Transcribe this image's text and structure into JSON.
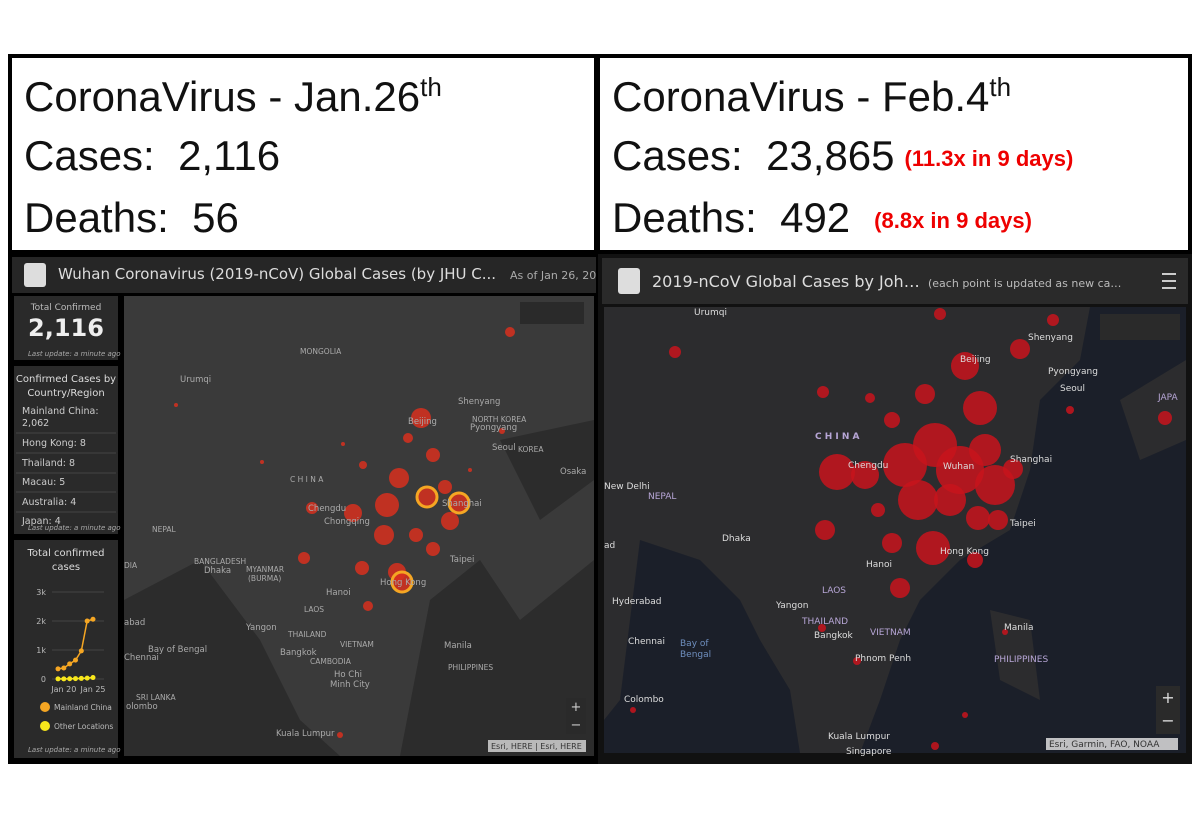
{
  "left": {
    "header": {
      "title": "CoronaVirus - Jan.26",
      "title_sup": "th",
      "cases_label": "Cases:",
      "cases": "2,116",
      "deaths_label": "Deaths:",
      "deaths": "56"
    },
    "dashboard": {
      "title": "Wuhan Coronavirus (2019-nCoV) Global Cases (by JHU C...",
      "as_of": "As of Jan 26, 20",
      "total_label": "Total Confirmed",
      "total": "2,116",
      "total_update": "Last update: a minute ago",
      "list_title": [
        "Confirmed Cases by",
        "Country/Region"
      ],
      "list": [
        "Mainland China:",
        "2,062",
        "Hong Kong: 8",
        "Thailand: 8",
        "Macau: 5",
        "Australia: 4",
        "Japan: 4"
      ],
      "list_update": "Last update: a minute ago",
      "chart": {
        "title": [
          "Total confirmed",
          "cases"
        ],
        "categories": [
          null,
          "Jan 20",
          null,
          null,
          null,
          null,
          "Jan 25"
        ],
        "series": [
          {
            "name": "Mainland China",
            "color": "#f5a623",
            "values": [
              350,
              380,
              520,
              650,
              970,
              2000,
              2060
            ]
          },
          {
            "name": "Other Locations",
            "color": "#f8e71c",
            "values": [
              5,
              5,
              10,
              15,
              20,
              30,
              50
            ]
          }
        ],
        "ylim": [
          0,
          3000
        ],
        "yticks": [
          0,
          {
            "value": 1000,
            "label": "1k"
          },
          {
            "value": 2000,
            "label": "2k"
          },
          {
            "value": 3000,
            "label": "3k"
          }
        ]
      },
      "chart_update": "Last update: a minute ago",
      "map": {
        "labels": [
          "MONGOLIA",
          "Urumqi",
          "Beijing",
          "Shenyang",
          "NORTH KOREA",
          "Pyongyang",
          "Seoul",
          "KOREA",
          "Osaka",
          "C H I N A",
          "Chengdu",
          "Chongqing",
          "Shanghai",
          "NEPAL",
          "BANGLADESH",
          "Dhaka",
          "MYANMAR",
          "(BURMA)",
          "Hong Kong",
          "Taipei",
          "Hanoi",
          "LAOS",
          "Yangon",
          "THAILAND",
          "Bangkok",
          "VIETNAM",
          "CAMBODIA",
          "Ho Chi",
          "Minh City",
          "Manila",
          "PHILIPPINES",
          "Bay of Bengal",
          "Chennai",
          "SRI LANKA",
          "olombo",
          "abad",
          "DIA",
          "Kuala Lumpur"
        ],
        "attribution": "Esri, HERE | Esri, HERE"
      }
    }
  },
  "right": {
    "header": {
      "title": "CoronaVirus - Feb.4",
      "title_sup": "th",
      "cases_label": "Cases:",
      "cases": "23,865",
      "cases_note": "(11.3x in 9 days)",
      "deaths_label": "Deaths:",
      "deaths": "492",
      "deaths_note": "(8.8x in 9 days)"
    },
    "dashboard": {
      "title": "2019-nCoV Global Cases by Joh…",
      "subtitle": "(each point is updated as new ca…",
      "map": {
        "labels": [
          "Urumqi",
          "Beijing",
          "Shenyang",
          "Pyongyang",
          "Seoul",
          "JAPA",
          "C H I N A",
          "Chengdu",
          "Wuhan",
          "Shanghai",
          "New Delhi",
          "NEPAL",
          "Dhaka",
          "Taipei",
          "Hong Kong",
          "Hanoi",
          "LAOS",
          "Yangon",
          "THAILAND",
          "Bangkok",
          "VIETNAM",
          "Hyderabad",
          "Chennai",
          "Bay of",
          "Bengal",
          "Manila",
          "PHILIPPINES",
          "Phnom Penh",
          "Colombo",
          "Kuala Lumpur",
          "Singapore",
          "ad"
        ],
        "attribution": "Esri, Garmin, FAO, NOAA"
      }
    }
  }
}
